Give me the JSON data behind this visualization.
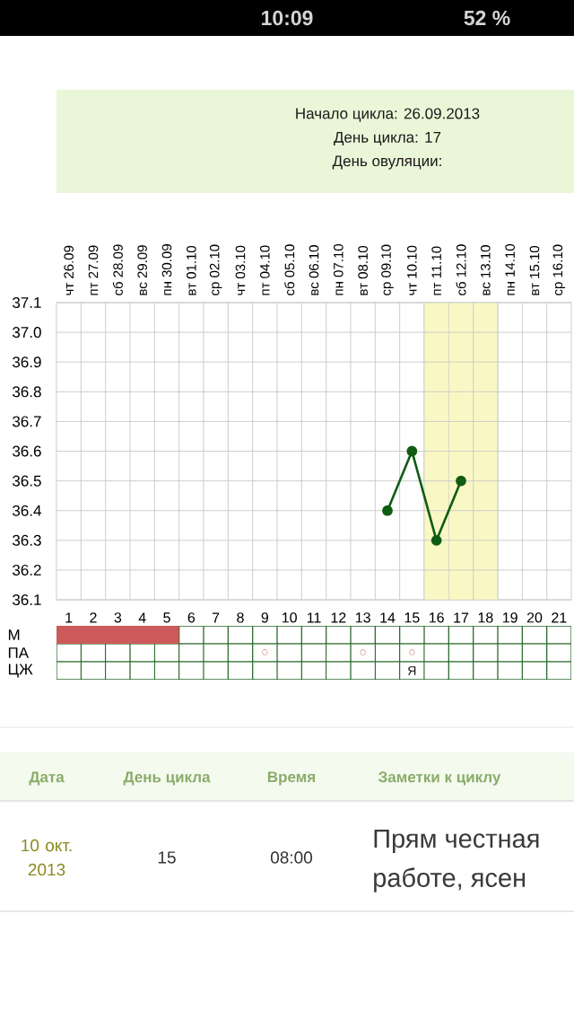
{
  "chart_data": [
    {
      "type": "other",
      "annotations": [
        "10:09",
        "52 %"
      ]
    },
    {
      "type": "line",
      "title": "Начало цикла: 26.09.2013",
      "subtitle": "День цикла: 17",
      "annotations": [
        "День овуляции:"
      ],
      "categories": [
        "чт 26.09",
        "пт 27.09",
        "сб 28.09",
        "вс 29.09",
        "пн 30.09",
        "вт 01.10",
        "ср 02.10",
        "чт 03.10",
        "пт 04.10",
        "сб 05.10",
        "вс 06.10",
        "пн 07.10",
        "вт 08.10",
        "ср 09.10",
        "чт 10.10",
        "пт 11.10",
        "сб 12.10",
        "вс 13.10",
        "пн 14.10",
        "вт 15.10",
        "ср 16.10"
      ],
      "values": [
        null,
        null,
        null,
        null,
        null,
        null,
        null,
        null,
        null,
        null,
        null,
        null,
        null,
        36.4,
        36.6,
        36.3,
        36.5,
        null,
        null,
        null,
        null
      ],
      "color": "#0f5c14",
      "ylim": [
        36.1,
        37.1
      ],
      "yticks": [
        36.1,
        36.2,
        36.3,
        36.4,
        36.5,
        36.6,
        36.7,
        36.8,
        36.9,
        {
          "value": 37,
          "label": "37.0"
        },
        37.1
      ],
      "grid": true,
      "marker": "circle",
      "line_style": "solid",
      "bands": [
        {
          "axis": "x",
          "from": "пт 11.10",
          "to": "вс 13.10",
          "color": "#f9f8c4"
        }
      ]
    },
    {
      "type": "bar",
      "orientation": "horizontal",
      "categories": [
        "М"
      ],
      "values": [
        5
      ],
      "base": [
        0.5
      ],
      "color": "#cd5a5a",
      "xlim": [
        0.5,
        21.5
      ],
      "xticks": [
        1,
        2,
        3,
        4,
        5,
        6,
        7,
        8,
        9,
        10,
        11,
        12,
        13,
        14,
        15,
        16,
        17,
        18,
        19,
        20,
        21
      ],
      "grid": true
    },
    {
      "type": "heatmap",
      "categories": [
        "1",
        "2",
        "3",
        "4",
        "5",
        "6",
        "7",
        "8",
        "9",
        "10",
        "11",
        "12",
        "13",
        "14",
        "15",
        "16",
        "17",
        "18",
        "19",
        "20",
        "21"
      ],
      "y_categories": [
        "ПА",
        "ЦЖ"
      ],
      "cells": [
        [
          null,
          null,
          null,
          null,
          null,
          null,
          null,
          null,
          null,
          null,
          null,
          null,
          null,
          null,
          null,
          null,
          null,
          null,
          null,
          null,
          null
        ],
        [
          null,
          null,
          null,
          null,
          null,
          null,
          null,
          null,
          null,
          null,
          null,
          null,
          null,
          null,
          null,
          null,
          null,
          null,
          null,
          null,
          null
        ]
      ],
      "cell_labels": [
        [
          null,
          null,
          null,
          null,
          null,
          null,
          null,
          null,
          "○",
          null,
          null,
          null,
          "○",
          null,
          "○",
          null,
          null,
          null,
          null,
          null,
          null
        ],
        [
          null,
          null,
          null,
          null,
          null,
          null,
          null,
          null,
          null,
          null,
          null,
          null,
          null,
          null,
          "Я",
          null,
          null,
          null,
          null,
          null,
          null
        ]
      ],
      "tick_labels": "y"
    },
    {
      "type": "other",
      "annotations": [
        "Дата",
        "День цикла",
        "Время",
        "Заметки к циклу",
        "10 окт. 2013",
        "15",
        "08:00",
        "Прям честная",
        "работе, ясен"
      ]
    }
  ]
}
